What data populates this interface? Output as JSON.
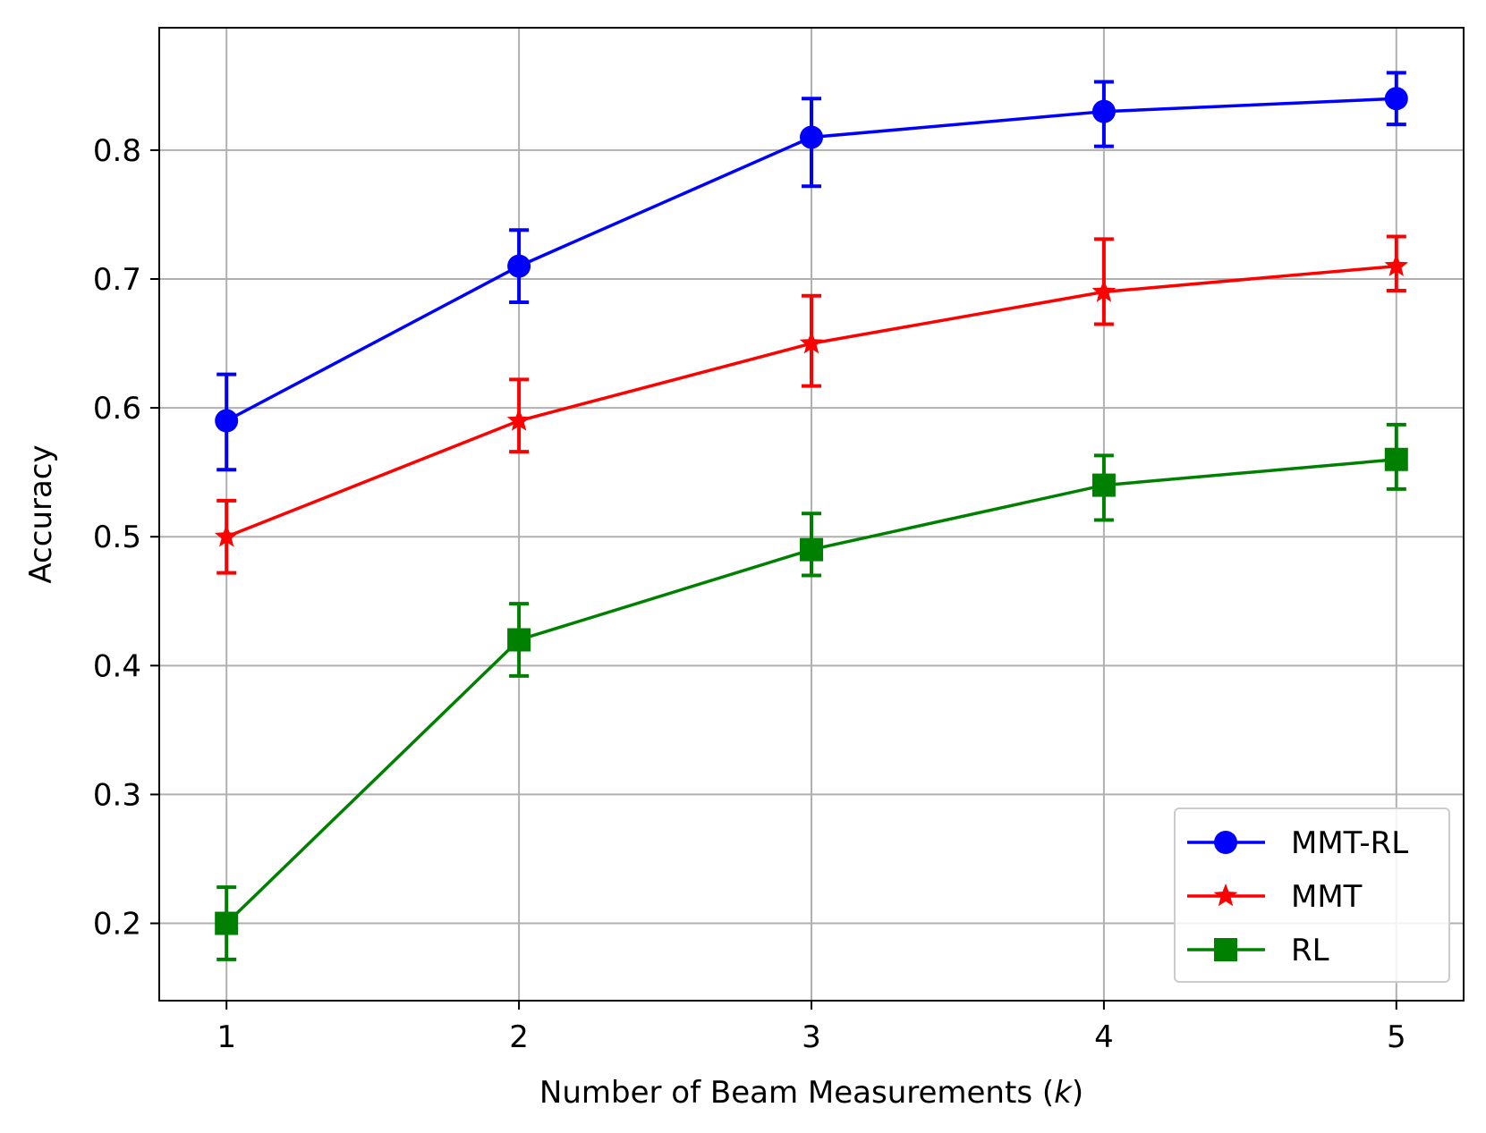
{
  "chart_data": {
    "type": "line",
    "xlabel_prefix": "Number of Beam Measurements (",
    "xlabel_var": "k",
    "xlabel_suffix": ")",
    "ylabel": "Accuracy",
    "x": [
      1,
      2,
      3,
      4,
      5
    ],
    "xticks": [
      "1",
      "2",
      "3",
      "4",
      "5"
    ],
    "yticks": [
      "0.2",
      "0.3",
      "0.4",
      "0.5",
      "0.6",
      "0.7",
      "0.8"
    ],
    "xlim": [
      0.77,
      5.23
    ],
    "ylim": [
      0.14,
      0.895
    ],
    "grid": true,
    "legend_position": "lower right",
    "series": [
      {
        "name": "MMT-RL",
        "color": "#0000ff",
        "marker": "circle",
        "values": [
          0.59,
          0.71,
          0.81,
          0.83,
          0.84
        ],
        "err_low": [
          0.552,
          0.682,
          0.772,
          0.803,
          0.82
        ],
        "err_high": [
          0.626,
          0.738,
          0.84,
          0.853,
          0.86
        ]
      },
      {
        "name": "MMT",
        "color": "#ff0000",
        "marker": "star",
        "values": [
          0.5,
          0.59,
          0.65,
          0.69,
          0.71
        ],
        "err_low": [
          0.472,
          0.566,
          0.617,
          0.665,
          0.691
        ],
        "err_high": [
          0.528,
          0.622,
          0.687,
          0.731,
          0.733
        ]
      },
      {
        "name": "RL",
        "color": "#008000",
        "marker": "square",
        "values": [
          0.2,
          0.42,
          0.49,
          0.54,
          0.56
        ],
        "err_low": [
          0.172,
          0.392,
          0.47,
          0.513,
          0.537
        ],
        "err_high": [
          0.228,
          0.448,
          0.518,
          0.563,
          0.587
        ]
      }
    ]
  }
}
